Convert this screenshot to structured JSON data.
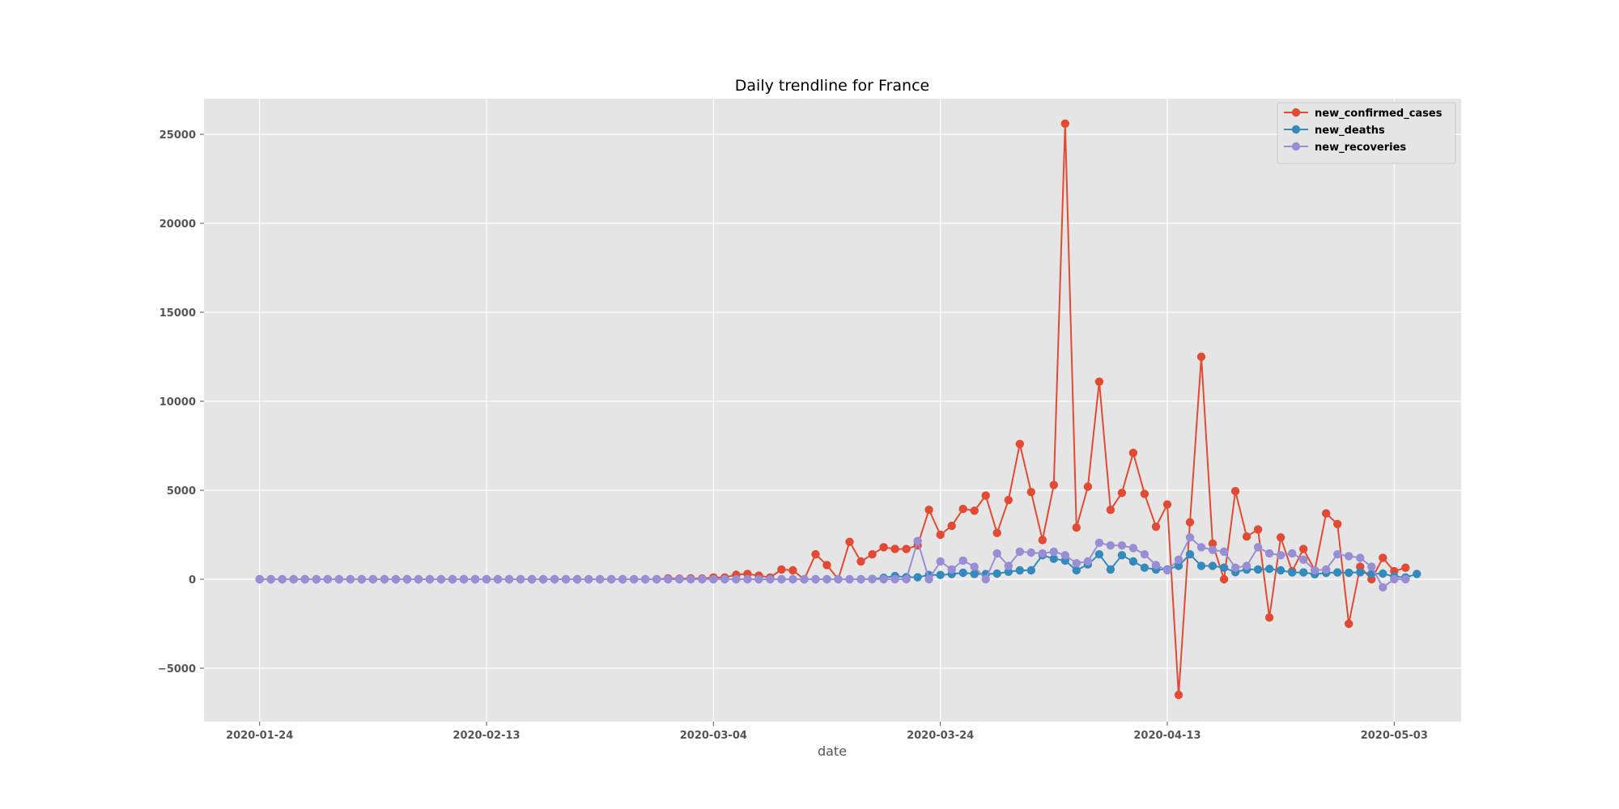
{
  "chart_data": {
    "type": "line",
    "title": "Daily trendline for France",
    "xlabel": "date",
    "ylabel": "",
    "x_start": "2020-01-24",
    "x_end": "2020-05-04",
    "x_ticks": [
      "2020-01-24",
      "2020-02-13",
      "2020-03-04",
      "2020-03-24",
      "2020-04-13",
      "2020-05-03"
    ],
    "y_ticks": [
      -5000,
      0,
      5000,
      10000,
      15000,
      20000,
      25000
    ],
    "ylim": [
      -8000,
      27000
    ],
    "grid": true,
    "legend_position": "top-right",
    "series": [
      {
        "name": "new_confirmed_cases",
        "color": "#E24A33",
        "values": [
          0,
          0,
          0,
          0,
          0,
          0,
          0,
          0,
          0,
          0,
          0,
          0,
          0,
          0,
          0,
          0,
          0,
          0,
          0,
          0,
          0,
          0,
          0,
          0,
          0,
          0,
          0,
          0,
          0,
          0,
          0,
          0,
          0,
          0,
          0,
          0,
          50,
          30,
          50,
          40,
          100,
          100,
          250,
          300,
          200,
          100,
          550,
          500,
          0,
          1400,
          800,
          0,
          2100,
          1000,
          1400,
          1800,
          1700,
          1700,
          1900,
          3900,
          2500,
          3000,
          3950,
          3850,
          4700,
          2600,
          4450,
          7600,
          4900,
          2200,
          5300,
          25600,
          2900,
          5200,
          11100,
          3900,
          4850,
          7100,
          4800,
          2950,
          4200,
          -6500,
          3200,
          12500,
          2000,
          0,
          4950,
          2400,
          2800,
          -2150,
          2350,
          450,
          1700,
          500,
          3700,
          3100,
          -2500,
          700,
          0,
          1200,
          450,
          650
        ]
      },
      {
        "name": "new_deaths",
        "color": "#348ABD",
        "values": [
          0,
          0,
          0,
          0,
          0,
          0,
          0,
          0,
          0,
          0,
          0,
          0,
          0,
          0,
          0,
          0,
          0,
          0,
          0,
          0,
          0,
          0,
          0,
          0,
          0,
          0,
          0,
          0,
          0,
          0,
          0,
          0,
          0,
          0,
          0,
          0,
          0,
          0,
          0,
          0,
          0,
          0,
          0,
          0,
          0,
          0,
          0,
          0,
          0,
          0,
          0,
          0,
          0,
          0,
          20,
          80,
          180,
          120,
          110,
          240,
          240,
          290,
          365,
          300,
          290,
          320,
          420,
          500,
          500,
          1350,
          1150,
          1050,
          500,
          830,
          1400,
          550,
          1350,
          1000,
          650,
          550,
          550,
          750,
          1400,
          750,
          750,
          650,
          400,
          550,
          550,
          580,
          500,
          380,
          380,
          280,
          360,
          380,
          370,
          390,
          310,
          320,
          150,
          100,
          300
        ]
      },
      {
        "name": "new_recoveries",
        "color": "#988ED5",
        "values": [
          0,
          0,
          0,
          0,
          0,
          0,
          0,
          0,
          0,
          0,
          0,
          0,
          0,
          0,
          0,
          0,
          0,
          0,
          0,
          0,
          0,
          0,
          0,
          0,
          0,
          0,
          0,
          0,
          0,
          0,
          0,
          0,
          0,
          0,
          0,
          0,
          0,
          0,
          0,
          0,
          0,
          0,
          0,
          0,
          0,
          0,
          0,
          0,
          0,
          0,
          0,
          0,
          0,
          0,
          0,
          0,
          0,
          0,
          2150,
          0,
          1000,
          550,
          1050,
          700,
          0,
          1450,
          750,
          1550,
          1500,
          1450,
          1550,
          1350,
          900,
          1000,
          2050,
          1900,
          1900,
          1750,
          1400,
          800,
          500,
          1100,
          2350,
          1800,
          1650,
          1550,
          650,
          750,
          1800,
          1450,
          1350,
          1450,
          1100,
          500,
          550,
          1400,
          1300,
          1200,
          700,
          -450,
          0,
          0
        ]
      }
    ]
  }
}
